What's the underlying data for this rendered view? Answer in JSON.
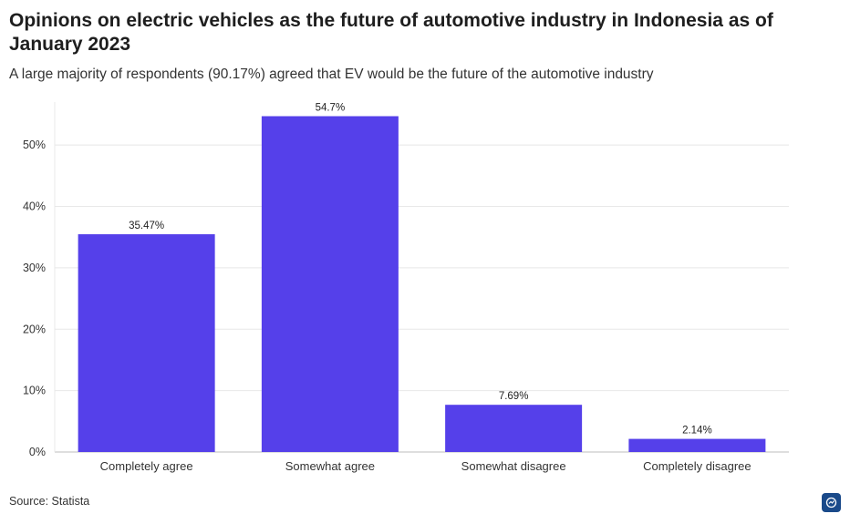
{
  "title": "Opinions on electric vehicles as the future of automotive industry in Indonesia as of January 2023",
  "subtitle": "A large majority of respondents (90.17%) agreed that EV would be the future of the automotive industry",
  "source": "Source: Statista",
  "logo_icon": "statista-logo-icon",
  "colors": {
    "bar": "#5540ea",
    "grid": "#e8e8e8",
    "axis": "#bdbdbd"
  },
  "chart_data": {
    "type": "bar",
    "title": "Opinions on electric vehicles as the future of automotive industry in Indonesia as of January 2023",
    "xlabel": "",
    "ylabel": "",
    "categories": [
      "Completely agree",
      "Somewhat agree",
      "Somewhat disagree",
      "Completely disagree"
    ],
    "values": [
      35.47,
      54.7,
      7.69,
      2.14
    ],
    "value_labels": [
      "35.47%",
      "54.7%",
      "7.69%",
      "2.14%"
    ],
    "ylim": [
      0,
      57
    ],
    "yticks": [
      0,
      10,
      20,
      30,
      40,
      50
    ],
    "ytick_labels": [
      "0%",
      "10%",
      "20%",
      "30%",
      "40%",
      "50%"
    ],
    "grid": true
  }
}
